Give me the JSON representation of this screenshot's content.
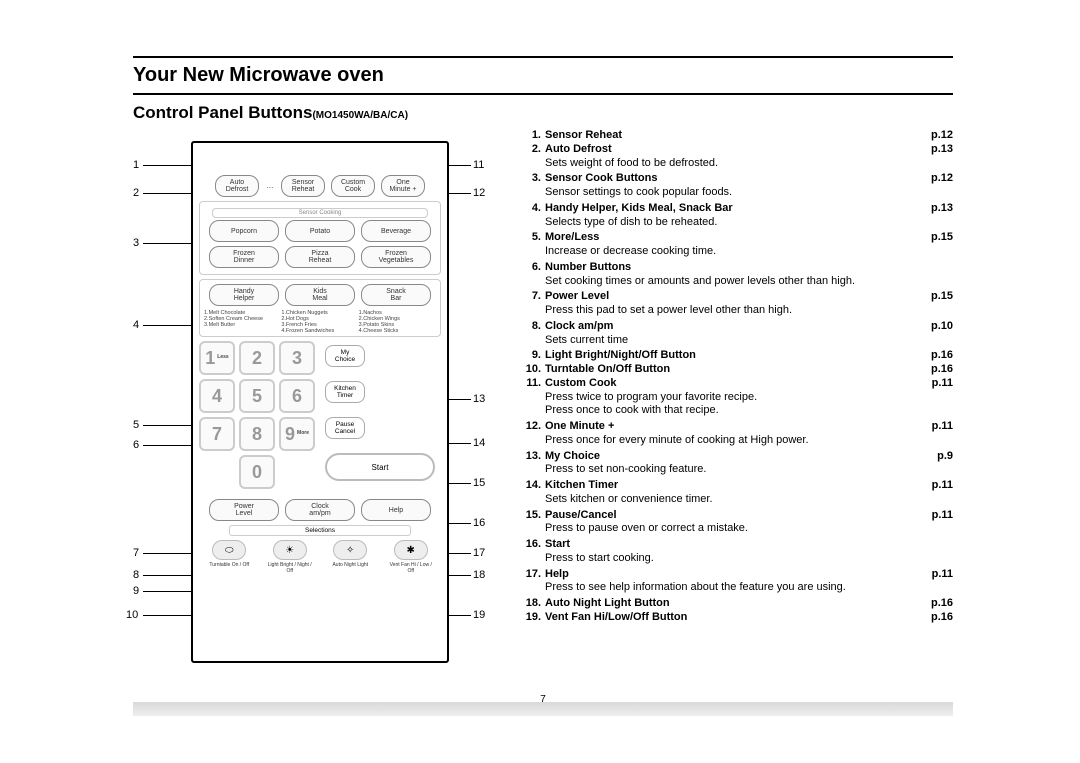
{
  "header": {
    "chapter": "Your New Microwave oven",
    "section": "Control Panel Buttons",
    "model": "(MO1450WA/BA/CA)"
  },
  "page_number": "7",
  "callouts_left": [
    "1",
    "2",
    "3",
    "4",
    "5",
    "6",
    "7",
    "8",
    "9",
    "10"
  ],
  "callouts_right": [
    "11",
    "12",
    "13",
    "14",
    "15",
    "16",
    "17",
    "18",
    "19"
  ],
  "panel": {
    "top_row": [
      "Auto\nDefrost",
      "…",
      "Sensor\nReheat",
      "Custom\nCook",
      "One\nMinute +"
    ],
    "sensor_label": "Sensor Cooking",
    "sensor_row1": [
      "Popcorn",
      "Potato",
      "Beverage"
    ],
    "sensor_row2": [
      "Frozen\nDinner",
      "Pizza\nReheat",
      "Frozen\nVegetables"
    ],
    "helper_row": [
      "Handy\nHelper",
      "Kids\nMeal",
      "Snack\nBar"
    ],
    "helper_lists": {
      "a": [
        "1.Melt Chocolate",
        "2.Soften Cream Cheese",
        "3.Melt Butter"
      ],
      "b": [
        "1.Chicken Nuggets",
        "2.Hot Dogs",
        "3.French Fries",
        "4.Frozen Sandwiches"
      ],
      "c": [
        "1.Nachos",
        "2.Chicken Wings",
        "3.Potato Skins",
        "4.Cheese Sticks"
      ]
    },
    "keypad": [
      "1",
      "2",
      "3",
      "4",
      "5",
      "6",
      "7",
      "8",
      "9",
      "0"
    ],
    "key_subs": {
      "1": "Less",
      "9": "More"
    },
    "side_buttons": [
      "My\nChoice",
      "Kitchen\nTimer",
      "Pause\nCancel"
    ],
    "start": "Start",
    "bottom_row": [
      "Power\nLevel",
      "Clock\nam/pm",
      "Help"
    ],
    "selections": "Selections",
    "icon_caps": [
      "Turntable On / Off",
      "Light Bright / Night / Off",
      "Auto Night Light",
      "Vent Fan Hi / Low / Off"
    ],
    "icons": [
      "⬭",
      "☀",
      "✧",
      "✱"
    ]
  },
  "features": [
    {
      "n": "1.",
      "t": "Sensor Reheat",
      "p": "p.12",
      "d": ""
    },
    {
      "n": "2.",
      "t": "Auto Defrost",
      "p": "p.13",
      "d": "Sets weight of food to be defrosted."
    },
    {
      "n": "3.",
      "t": "Sensor Cook Buttons",
      "p": "p.12",
      "d": "Sensor settings to cook popular foods."
    },
    {
      "n": "4.",
      "t": "Handy Helper, Kids Meal, Snack Bar",
      "p": "p.13",
      "d": "Selects type of dish to be reheated."
    },
    {
      "n": "5.",
      "t": "More/Less",
      "p": "p.15",
      "d": "Increase or decrease cooking time."
    },
    {
      "n": "6.",
      "t": "Number Buttons",
      "p": "",
      "d": "Set cooking times or amounts and power levels other than high."
    },
    {
      "n": "7.",
      "t": "Power Level",
      "p": "p.15",
      "d": "Press this pad to set a power level other than high."
    },
    {
      "n": "8.",
      "t": "Clock am/pm",
      "p": "p.10",
      "d": "Sets current time"
    },
    {
      "n": "9.",
      "t": "Light Bright/Night/Off Button",
      "p": "p.16",
      "d": ""
    },
    {
      "n": "10.",
      "t": "Turntable On/Off Button",
      "p": "p.16",
      "d": ""
    },
    {
      "n": "11.",
      "t": "Custom Cook",
      "p": "p.11",
      "d": "Press twice to program your favorite recipe.\nPress once to cook with that recipe."
    },
    {
      "n": "12.",
      "t": "One Minute +",
      "p": "p.11",
      "d": "Press once for every minute of cooking at High power."
    },
    {
      "n": "13.",
      "t": "My Choice",
      "p": "p.9",
      "d": "Press to set non-cooking feature."
    },
    {
      "n": "14.",
      "t": "Kitchen Timer",
      "p": "p.11",
      "d": "Sets kitchen or convenience timer."
    },
    {
      "n": "15.",
      "t": "Pause/Cancel",
      "p": "p.11",
      "d": "Press to pause oven or correct a mistake."
    },
    {
      "n": "16.",
      "t": "Start",
      "p": "",
      "d": "Press to start cooking."
    },
    {
      "n": "17.",
      "t": "Help",
      "p": "p.11",
      "d": "Press to see help information about the feature you are using."
    },
    {
      "n": "18.",
      "t": "Auto Night Light Button",
      "p": "p.16",
      "d": ""
    },
    {
      "n": "19.",
      "t": "Vent Fan Hi/Low/Off Button",
      "p": "p.16",
      "d": ""
    }
  ]
}
